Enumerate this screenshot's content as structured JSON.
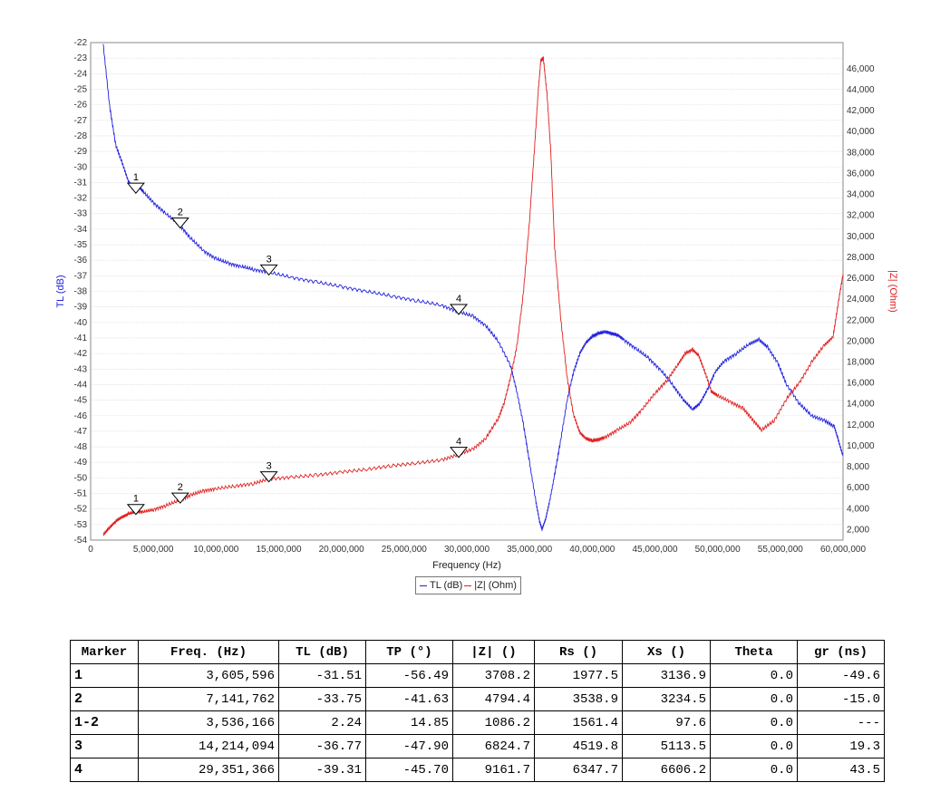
{
  "chart_data": {
    "type": "line",
    "xlabel": "Frequency (Hz)",
    "xlim": [
      0,
      60000000
    ],
    "xticks": [
      0,
      5000000,
      10000000,
      15000000,
      20000000,
      25000000,
      30000000,
      35000000,
      40000000,
      45000000,
      50000000,
      55000000,
      60000000
    ],
    "xtick_labels": [
      "0",
      "5,000,000",
      "10,000,000",
      "15,000,000",
      "20,000,000",
      "25,000,000",
      "30,000,000",
      "35,000,000",
      "40,000,000",
      "45,000,000",
      "50,000,000",
      "55,000,000",
      "60,000,000"
    ],
    "y_left": {
      "label": "TL (dB)",
      "lim": [
        -54,
        -22
      ],
      "color": "#2020e0",
      "ticks": [
        -22,
        -23,
        -24,
        -25,
        -26,
        -27,
        -28,
        -29,
        -30,
        -31,
        -32,
        -33,
        -34,
        -35,
        -36,
        -37,
        -38,
        -39,
        -40,
        -41,
        -42,
        -43,
        -44,
        -45,
        -46,
        -47,
        -48,
        -49,
        -50,
        -51,
        -52,
        -53,
        -54
      ]
    },
    "y_right": {
      "label": "|Z| (Ohm)",
      "lim": [
        1000,
        48500
      ],
      "color": "#e02020",
      "ticks": [
        2000,
        4000,
        6000,
        8000,
        10000,
        12000,
        14000,
        16000,
        18000,
        20000,
        22000,
        24000,
        26000,
        28000,
        30000,
        32000,
        34000,
        36000,
        38000,
        40000,
        42000,
        44000,
        46000
      ],
      "tick_labels": [
        "2,000",
        "4,000",
        "6,000",
        "8,000",
        "10,000",
        "12,000",
        "14,000",
        "16,000",
        "18,000",
        "20,000",
        "22,000",
        "24,000",
        "26,000",
        "28,000",
        "30,000",
        "32,000",
        "34,000",
        "36,000",
        "38,000",
        "40,000",
        "42,000",
        "44,000",
        "46,000"
      ]
    },
    "grid": true,
    "legend": {
      "position": "bottom-center",
      "entries": [
        "TL (dB)",
        "|Z| (Ohm)"
      ]
    },
    "series": [
      {
        "name": "TL (dB)",
        "axis": "left",
        "color": "#2020e0",
        "x": [
          1000000,
          1500000,
          2000000,
          2500000,
          3000000,
          3300000,
          3600000,
          3800000,
          4200000,
          5000000,
          6000000,
          7100000,
          8000000,
          9000000,
          10000000,
          11000000,
          12000000,
          13000000,
          14200000,
          16000000,
          18000000,
          20000000,
          22000000,
          24000000,
          26000000,
          28000000,
          29300000,
          30500000,
          31500000,
          32500000,
          33500000,
          34000000,
          34500000,
          35000000,
          35500000,
          35800000,
          36000000,
          36300000,
          36600000,
          37000000,
          37500000,
          38000000,
          38500000,
          39000000,
          39500000,
          40000000,
          40500000,
          41000000,
          41500000,
          42000000,
          42500000,
          43500000,
          44500000,
          45500000,
          46500000,
          47300000,
          48000000,
          48600000,
          49200000,
          49800000,
          50500000,
          51500000,
          52500000,
          53300000,
          54000000,
          54800000,
          55500000,
          56500000,
          57500000,
          58500000,
          59300000,
          59600000,
          60000000
        ],
        "y": [
          -22.1,
          -26.0,
          -28.6,
          -29.7,
          -30.9,
          -31.3,
          -31.5,
          -31.2,
          -31.6,
          -32.3,
          -33.0,
          -33.75,
          -34.6,
          -35.4,
          -35.9,
          -36.2,
          -36.4,
          -36.6,
          -36.77,
          -37.1,
          -37.4,
          -37.7,
          -38.0,
          -38.3,
          -38.6,
          -38.9,
          -39.31,
          -39.6,
          -40.2,
          -41.2,
          -42.8,
          -44.5,
          -46.5,
          -49.0,
          -51.5,
          -52.8,
          -53.3,
          -52.6,
          -51.5,
          -49.8,
          -47.5,
          -45.0,
          -43.2,
          -42.0,
          -41.3,
          -40.9,
          -40.7,
          -40.6,
          -40.7,
          -40.8,
          -41.1,
          -41.7,
          -42.3,
          -43.1,
          -44.1,
          -45.0,
          -45.6,
          -45.2,
          -44.3,
          -43.2,
          -42.5,
          -42.0,
          -41.4,
          -41.1,
          -41.6,
          -42.6,
          -44.0,
          -45.2,
          -46.0,
          -46.3,
          -46.7,
          -47.5,
          -48.6
        ]
      },
      {
        "name": "|Z| (Ohm)",
        "axis": "right",
        "color": "#e02020",
        "x": [
          1000000,
          1500000,
          2000000,
          2500000,
          3000000,
          3600000,
          4200000,
          5000000,
          6000000,
          7100000,
          8000000,
          9000000,
          10000000,
          11500000,
          13000000,
          14200000,
          16000000,
          18000000,
          20000000,
          22000000,
          24000000,
          26000000,
          28000000,
          29300000,
          30500000,
          31500000,
          32500000,
          33000000,
          33500000,
          34000000,
          34500000,
          35000000,
          35400000,
          35700000,
          35900000,
          36100000,
          36400000,
          36700000,
          37000000,
          37500000,
          38000000,
          38500000,
          39000000,
          39500000,
          40000000,
          40500000,
          41000000,
          42000000,
          43000000,
          44000000,
          45000000,
          46000000,
          46800000,
          47400000,
          48000000,
          48500000,
          49000000,
          49500000,
          50000000,
          51000000,
          52000000,
          52700000,
          53500000,
          54500000,
          55500000,
          56500000,
          57500000,
          58500000,
          59200000,
          59600000,
          60000000
        ],
        "y": [
          1500,
          2200,
          2800,
          3200,
          3500,
          3708,
          3700,
          3900,
          4300,
          4794,
          5300,
          5700,
          5900,
          6150,
          6400,
          6825,
          7000,
          7200,
          7500,
          7750,
          8100,
          8350,
          8650,
          9162,
          9700,
          10700,
          12600,
          14200,
          16600,
          19600,
          24500,
          31500,
          38500,
          44000,
          46800,
          47000,
          43500,
          38000,
          29000,
          22000,
          16500,
          13000,
          11300,
          10700,
          10500,
          10600,
          10800,
          11500,
          12200,
          13500,
          15000,
          16300,
          17700,
          18800,
          19200,
          18600,
          17000,
          15200,
          14800,
          14200,
          13600,
          12600,
          11500,
          12400,
          14500,
          16000,
          18000,
          19600,
          20400,
          23500,
          26400
        ]
      }
    ],
    "markers": [
      {
        "label": "1",
        "x": 3605596,
        "tl": -31.51,
        "z": 3708.2
      },
      {
        "label": "2",
        "x": 7141762,
        "tl": -33.75,
        "z": 4794.4
      },
      {
        "label": "3",
        "x": 14214094,
        "tl": -36.77,
        "z": 6824.7
      },
      {
        "label": "4",
        "x": 29351366,
        "tl": -39.31,
        "z": 9161.7
      }
    ]
  },
  "table": {
    "headers": [
      "Marker",
      "Freq. (Hz)",
      "TL (dB)",
      "TP (°)",
      "|Z| ()",
      "Rs ()",
      "Xs ()",
      "Theta",
      "gr (ns)"
    ],
    "rows": [
      [
        "1",
        "3,605,596",
        "-31.51",
        "-56.49",
        "3708.2",
        "1977.5",
        "3136.9",
        "0.0",
        "-49.6"
      ],
      [
        "2",
        "7,141,762",
        "-33.75",
        "-41.63",
        "4794.4",
        "3538.9",
        "3234.5",
        "0.0",
        "-15.0"
      ],
      [
        "1-2",
        "3,536,166",
        "2.24",
        "14.85",
        "1086.2",
        "1561.4",
        "97.6",
        "0.0",
        "---"
      ],
      [
        "3",
        "14,214,094",
        "-36.77",
        "-47.90",
        "6824.7",
        "4519.8",
        "5113.5",
        "0.0",
        "19.3"
      ],
      [
        "4",
        "29,351,366",
        "-39.31",
        "-45.70",
        "9161.7",
        "6347.7",
        "6606.2",
        "0.0",
        "43.5"
      ]
    ]
  }
}
